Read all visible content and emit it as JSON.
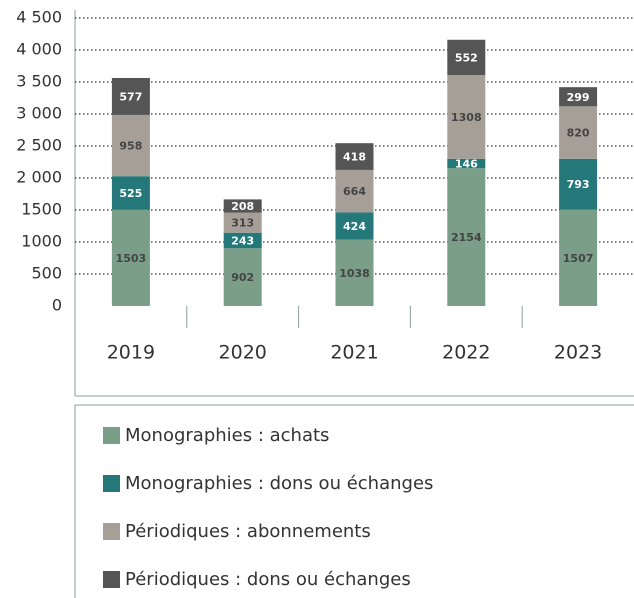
{
  "chart_data": {
    "type": "bar",
    "stacked": true,
    "categories": [
      "2019",
      "2020",
      "2021",
      "2022",
      "2023"
    ],
    "series": [
      {
        "name": "Monographies : achats",
        "color": "#7a9e87",
        "values": [
          1503,
          902,
          1038,
          2154,
          1507
        ]
      },
      {
        "name": "Monographies : dons ou échanges",
        "color": "#24787a",
        "values": [
          525,
          243,
          424,
          146,
          793
        ]
      },
      {
        "name": "Périodiques : abonnements",
        "color": "#a69f98",
        "values": [
          958,
          313,
          664,
          1308,
          820
        ]
      },
      {
        "name": "Périodiques : dons ou échanges",
        "color": "#555555",
        "values": [
          577,
          208,
          418,
          552,
          299
        ]
      }
    ],
    "ylim": [
      0,
      4500
    ],
    "yticks": [
      0,
      500,
      {
        "value": 1000,
        "label": "1000"
      },
      {
        "value": 1500,
        "label": "1500"
      },
      {
        "value": 2000,
        "label": "2 000"
      },
      {
        "value": 2500,
        "label": "2 500"
      },
      {
        "value": 3000,
        "label": "3 000"
      },
      {
        "value": 3500,
        "label": "3 500"
      },
      {
        "value": 4000,
        "label": "4 000"
      },
      {
        "value": 4500,
        "label": "4 500"
      }
    ],
    "grid": true,
    "legend": "bottom"
  }
}
